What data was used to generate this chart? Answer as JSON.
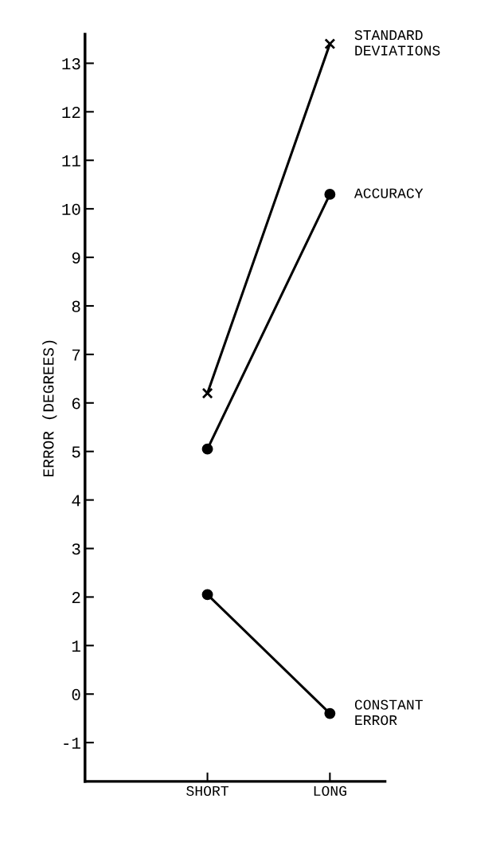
{
  "chart_data": {
    "type": "line",
    "ylabel": "ERROR (DEGREES)",
    "categories": [
      "SHORT",
      "LONG"
    ],
    "series": [
      {
        "name": "STANDARD\nDEVIATIONS",
        "color": "#000000",
        "marker": "cross",
        "values": [
          6.2,
          13.4
        ]
      },
      {
        "name": "ACCURACY",
        "color": "#000000",
        "marker": "circle",
        "values": [
          5.05,
          10.3
        ]
      },
      {
        "name": "CONSTANT\nERROR",
        "color": "#000000",
        "marker": "circle",
        "values": [
          2.05,
          -0.4
        ]
      }
    ],
    "ylim": [
      -1.8,
      13.6
    ],
    "yticks": [
      -1,
      0,
      1,
      2,
      3,
      4,
      5,
      6,
      7,
      8,
      9,
      10,
      11,
      12,
      13
    ],
    "grid": false,
    "legend": false,
    "line_style": "solid"
  }
}
